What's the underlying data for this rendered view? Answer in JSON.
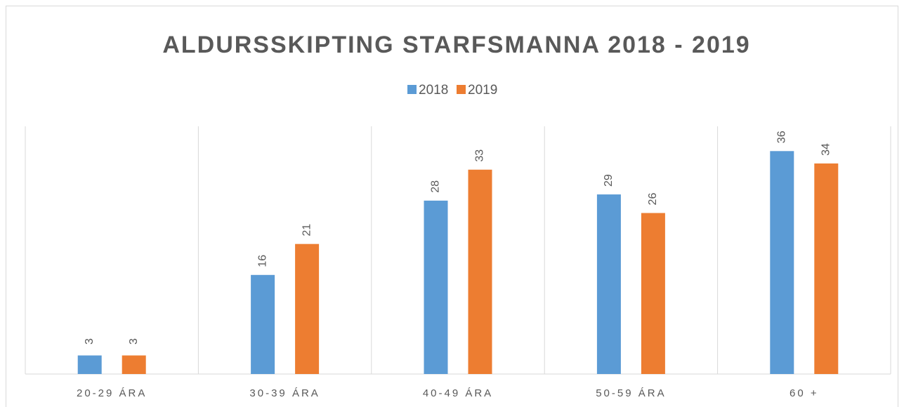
{
  "chart_data": {
    "type": "bar",
    "title": "ALDURSSKIPTING STARFSMANNA 2018 - 2019",
    "categories": [
      "20-29 ÁRA",
      "30-39 ÁRA",
      "40-49 ÁRA",
      "50-59 ÁRA",
      "60 +"
    ],
    "series": [
      {
        "name": "2018",
        "color": "#5b9bd5",
        "values": [
          3,
          16,
          28,
          29,
          36
        ]
      },
      {
        "name": "2019",
        "color": "#ed7d31",
        "values": [
          3,
          21,
          33,
          26,
          34
        ]
      }
    ],
    "ylim": [
      0,
      40
    ],
    "legend": "top",
    "grid": false
  }
}
